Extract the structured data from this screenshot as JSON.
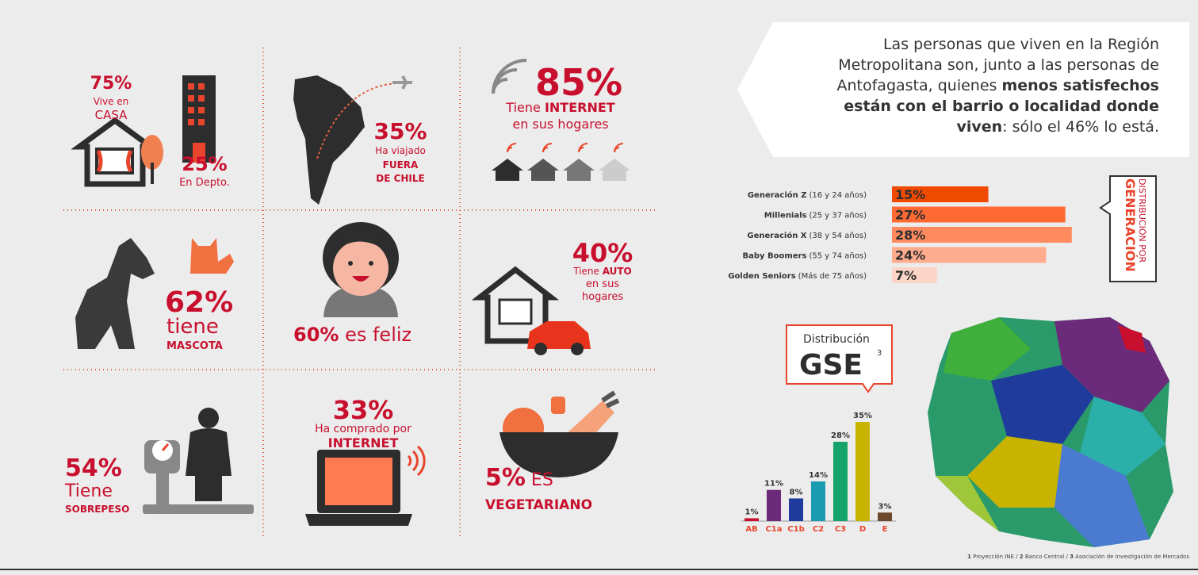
{
  "infographic": {
    "housing": {
      "casa_pct": "75%",
      "casa_line1": "Vive en",
      "casa_line2": "CASA",
      "depto_pct": "25%",
      "depto_text": "En Depto."
    },
    "travel": {
      "pct": "35%",
      "line1": "Ha viajado",
      "line2": "FUERA",
      "line3": "DE CHILE"
    },
    "internet": {
      "pct": "85%",
      "line1a": "Tiene ",
      "line1b": "INTERNET",
      "line2": "en sus hogares"
    },
    "pets": {
      "pct": "62%",
      "line1": "tiene",
      "line2": "MASCOTA"
    },
    "happy": {
      "pct": "60%",
      "text": " es feliz"
    },
    "car": {
      "pct": "40%",
      "line1a": "Tiene ",
      "line1b": "AUTO",
      "line2": "en sus",
      "line3": "hogares"
    },
    "weight": {
      "pct": "54%",
      "line1": "Tiene",
      "line2": "SOBREPESO"
    },
    "shopping": {
      "pct": "33%",
      "line1": "Ha comprado por",
      "line2": "INTERNET"
    },
    "vegetarian": {
      "pct": "5%",
      "line1": " ES",
      "line2": "VEGETARIANO"
    }
  },
  "quote": [
    "Las personas que viven en la Región",
    "Metropolitana son, junto a las personas de",
    "Antofagasta, quienes ",
    "menos satisfechos",
    "están con el barrio o localidad donde",
    "viven",
    ": sólo el 46% lo está."
  ],
  "footnote": [
    "1",
    " Proyección INE / ",
    "2",
    " Banco Central / ",
    "3",
    " Asociación de Investigación de Mercados"
  ],
  "chart_data": [
    {
      "type": "bar",
      "orientation": "horizontal",
      "title": "DISTRIBUCIÓN POR",
      "subtitle": "GENERACIÓN",
      "categories": [
        "Generación Z",
        "Millenials",
        "Generación X",
        "Baby Boomers",
        "Golden Seniors"
      ],
      "category_notes": [
        "(16 y 24 años)",
        "(25 y 37 años)",
        "(38 y 54 años)",
        "(55 y 74 años)",
        "(Más de 75 años)"
      ],
      "values": [
        15,
        27,
        28,
        24,
        7
      ],
      "value_labels": [
        "15%",
        "27%",
        "28%",
        "24%",
        "7%"
      ],
      "colors": [
        "#f04a00",
        "#ff6a33",
        "#ff8a5e",
        "#ffab8e",
        "#fdd5c6"
      ]
    },
    {
      "type": "bar",
      "title": "Distribución",
      "subtitle": "GSE",
      "subtitle_note": "3",
      "categories": [
        "AB",
        "C1a",
        "C1b",
        "C2",
        "C3",
        "D",
        "E"
      ],
      "values": [
        1,
        11,
        8,
        14,
        28,
        35,
        3
      ],
      "value_labels": [
        "1%",
        "11%",
        "8%",
        "14%",
        "28%",
        "35%",
        "3%"
      ],
      "colors": [
        "#c8102e",
        "#6b2a7a",
        "#1f3b9b",
        "#1a9bb0",
        "#13a36b",
        "#c8b400",
        "#6b4a2e"
      ]
    }
  ]
}
